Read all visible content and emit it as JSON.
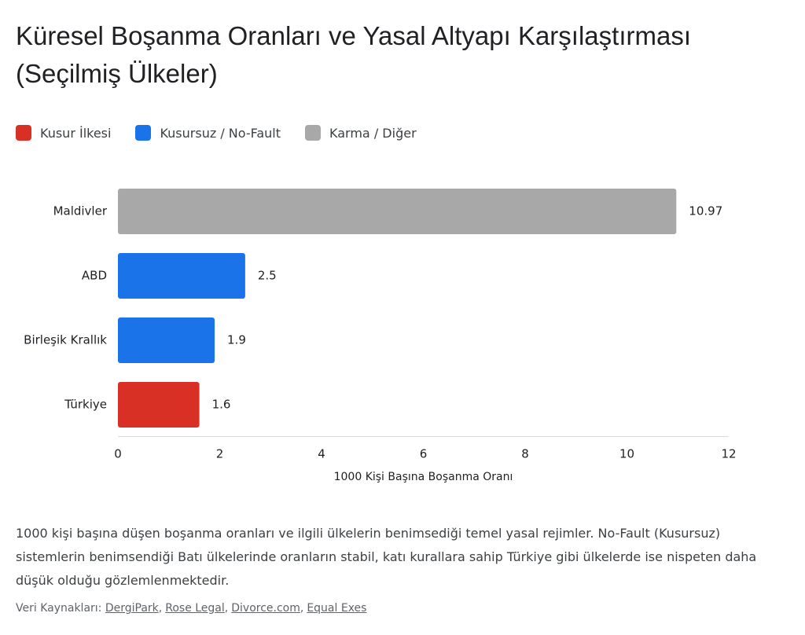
{
  "chart_data": {
    "type": "bar",
    "orientation": "horizontal",
    "title": "Küresel Boşanma Oranları ve Yasal Altyapı Karşılaştırması (Seçilmiş Ülkeler)",
    "categories": [
      "Maldivler",
      "ABD",
      "Birleşik Krallık",
      "Türkiye"
    ],
    "series": [
      {
        "name": "Kusur İlkesi",
        "color": "#d93025",
        "values": [
          null,
          null,
          null,
          1.6
        ]
      },
      {
        "name": "Kusursuz / No-Fault",
        "color": "#1a73e8",
        "values": [
          null,
          2.5,
          1.9,
          null
        ]
      },
      {
        "name": "Karma / Diğer",
        "color": "#a8a8a8",
        "values": [
          10.97,
          null,
          null,
          null
        ]
      }
    ],
    "xlabel": "1000 Kişi Başına Boşanma Oranı",
    "xlim": [
      0,
      12
    ],
    "xticks": [
      0,
      2,
      4,
      6,
      8,
      10,
      12
    ],
    "grid": false,
    "legend": "top-left",
    "description": "1000 kişi başına düşen boşanma oranları ve ilgili ülkelerin benimsediği temel yasal rejimler. No-Fault (Kusursuz) sistemlerin benimsendiği Batı ülkelerinde oranların stabil, katı kurallara sahip Türkiye gibi ülkelerde ise nispeten daha düşük olduğu gözlemlenmektedir.",
    "sources": {
      "label": "Veri Kaynakları:",
      "links": [
        "DergiPark",
        "Rose Legal",
        "Divorce.com",
        "Equal Exes"
      ]
    }
  }
}
